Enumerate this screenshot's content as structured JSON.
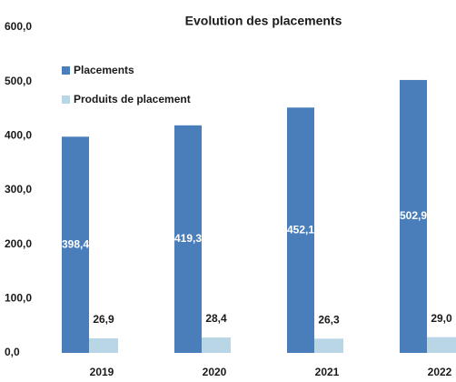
{
  "chart_data": {
    "type": "bar",
    "title": "Evolution des placements",
    "categories": [
      "2019",
      "2020",
      "2021",
      "2022"
    ],
    "series": [
      {
        "name": "Placements",
        "color": "#4a7ebb",
        "values": [
          398.4,
          419.3,
          452.1,
          502.9
        ],
        "value_labels": [
          "398,4",
          "419,3",
          "452,1",
          "502,9"
        ]
      },
      {
        "name": "Produits de placement",
        "color": "#b9d6e6",
        "values": [
          26.9,
          28.4,
          26.3,
          29.0
        ],
        "value_labels": [
          "26,9",
          "28,4",
          "26,3",
          "29,0"
        ]
      }
    ],
    "ylim": [
      0,
      600
    ],
    "yticks": [
      {
        "value": 0,
        "label": "0,0"
      },
      {
        "value": 100,
        "label": "100,0"
      },
      {
        "value": 200,
        "label": "200,0"
      },
      {
        "value": 300,
        "label": "300,0"
      },
      {
        "value": 400,
        "label": "400,0"
      },
      {
        "value": 500,
        "label": "500,0"
      },
      {
        "value": 600,
        "label": "600,0"
      }
    ]
  }
}
